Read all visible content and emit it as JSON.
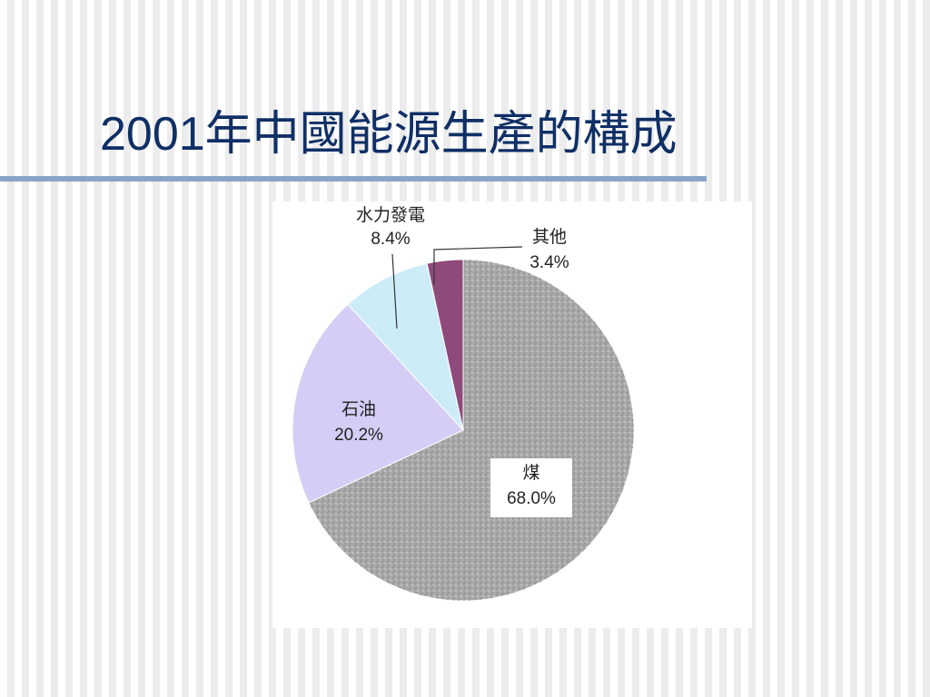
{
  "chart_data": {
    "type": "pie",
    "title": "2001年中國能源生產的構成",
    "categories": [
      "煤",
      "石油",
      "水力發電",
      "其他"
    ],
    "values": [
      68.0,
      20.2,
      8.4,
      3.4
    ],
    "value_labels": [
      "68.0%",
      "20.2%",
      "8.4%",
      "3.4%"
    ],
    "colors": [
      "#a9a9a9",
      "#d5cdf5",
      "#ccedf8",
      "#8e4a7a"
    ]
  }
}
